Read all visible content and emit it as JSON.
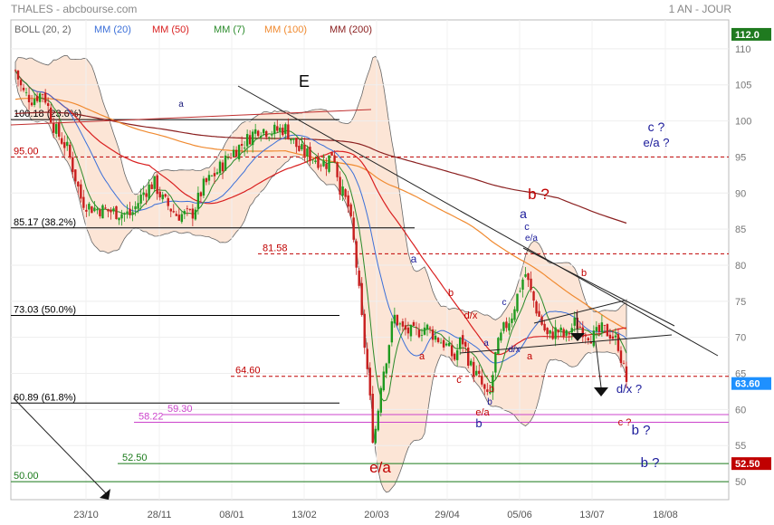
{
  "header": {
    "title": "THALES - abcbourse.com",
    "period": "1 AN - JOUR"
  },
  "chart_data": {
    "type": "candlestick",
    "legend": [
      {
        "label": "BOLL (20, 2)",
        "color": "#666666"
      },
      {
        "label": "MM (20)",
        "color": "#3b6fd8"
      },
      {
        "label": "MM (50)",
        "color": "#d92020"
      },
      {
        "label": "MM (7)",
        "color": "#2a8a2a"
      },
      {
        "label": "MM (100)",
        "color": "#f08a30"
      },
      {
        "label": "MM (200)",
        "color": "#8b2020"
      }
    ],
    "ylim": [
      47.5,
      114
    ],
    "y_ticks": [
      50,
      55,
      60,
      65,
      70,
      75,
      80,
      85,
      90,
      95,
      100,
      105,
      110
    ],
    "x_ticks": [
      "23/10",
      "28/11",
      "08/01",
      "13/02",
      "20/03",
      "29/04",
      "05/06",
      "13/07",
      "18/08"
    ],
    "price_badges": [
      {
        "value": "112.0",
        "price": 112.0,
        "color": "#1f7a1f"
      },
      {
        "value": "63.60",
        "price": 63.6,
        "color": "#1e90ff"
      },
      {
        "value": "52.50",
        "price": 52.5,
        "color": "#c00000"
      }
    ],
    "hlines": [
      {
        "label": "100.18  (23.6%)",
        "price": 100.18,
        "color": "#000000",
        "style": "solid",
        "x0": 12,
        "x1": 375
      },
      {
        "label": "95.00",
        "price": 95.0,
        "color": "#c00000",
        "style": "dashed",
        "x0": 12,
        "x1": 805
      },
      {
        "label": "85.17  (38.2%)",
        "price": 85.17,
        "color": "#000000",
        "style": "solid",
        "x0": 12,
        "x1": 458
      },
      {
        "label": "81.58",
        "price": 81.58,
        "color": "#c00000",
        "style": "dashed",
        "x0": 285,
        "x1": 805
      },
      {
        "label": "73.03  (50.0%)",
        "price": 73.03,
        "color": "#000000",
        "style": "solid",
        "x0": 12,
        "x1": 375
      },
      {
        "label": "64.60",
        "price": 64.6,
        "color": "#c00000",
        "style": "dashed",
        "x0": 255,
        "x1": 805
      },
      {
        "label": "60.89  (61.8%)",
        "price": 60.89,
        "color": "#000000",
        "style": "solid",
        "x0": 12,
        "x1": 375
      },
      {
        "label": "59.30",
        "price": 59.3,
        "color": "#cc44cc",
        "style": "solid",
        "x0": 180,
        "x1": 805
      },
      {
        "label": "58.22",
        "price": 58.22,
        "color": "#cc44cc",
        "style": "solid",
        "x0": 148,
        "x1": 805
      },
      {
        "label": "52.50",
        "price": 52.5,
        "color": "#1a7a1a",
        "style": "solid",
        "x0": 130,
        "x1": 805
      },
      {
        "label": "50.00",
        "price": 50.0,
        "color": "#1a7a1a",
        "style": "solid",
        "x0": 12,
        "x1": 805
      }
    ],
    "annotations": [
      {
        "text": "E",
        "x": 336,
        "y": 96,
        "color": "#000000",
        "size": 18
      },
      {
        "text": "a",
        "x": 200,
        "y": 118,
        "color": "#1a1a7a",
        "size": 10
      },
      {
        "text": "c ?",
        "x": 725,
        "y": 145,
        "color": "#1a1a9a",
        "size": 14
      },
      {
        "text": "e/a ?",
        "x": 725,
        "y": 162,
        "color": "#1a1a9a",
        "size": 13
      },
      {
        "text": "b ?",
        "x": 595,
        "y": 220,
        "color": "#c00000",
        "size": 17
      },
      {
        "text": "a",
        "x": 578,
        "y": 241,
        "color": "#1a1a9a",
        "size": 14
      },
      {
        "text": "c",
        "x": 582,
        "y": 254,
        "color": "#1a1a9a",
        "size": 11
      },
      {
        "text": "e/a",
        "x": 587,
        "y": 266,
        "color": "#1a1a9a",
        "size": 10
      },
      {
        "text": "a",
        "x": 457,
        "y": 290,
        "color": "#1a1a9a",
        "size": 12
      },
      {
        "text": "b",
        "x": 645,
        "y": 305,
        "color": "#c00000",
        "size": 11
      },
      {
        "text": "b",
        "x": 498,
        "y": 327,
        "color": "#c00000",
        "size": 11
      },
      {
        "text": "c",
        "x": 557,
        "y": 337,
        "color": "#1a1a9a",
        "size": 10
      },
      {
        "text": "d/x",
        "x": 520,
        "y": 352,
        "color": "#c00000",
        "size": 11
      },
      {
        "text": "a",
        "x": 537,
        "y": 382,
        "color": "#1a1a9a",
        "size": 10
      },
      {
        "text": "d/x",
        "x": 568,
        "y": 389,
        "color": "#1a1a9a",
        "size": 10
      },
      {
        "text": "a",
        "x": 466,
        "y": 397,
        "color": "#c00000",
        "size": 11
      },
      {
        "text": "a",
        "x": 585,
        "y": 397,
        "color": "#c00000",
        "size": 11
      },
      {
        "text": "c",
        "x": 507,
        "y": 423,
        "color": "#c00000",
        "size": 11
      },
      {
        "text": "b",
        "x": 543,
        "y": 433,
        "color": "#c00000",
        "size": 11
      },
      {
        "text": "d/x ?",
        "x": 695,
        "y": 434,
        "color": "#1a1a9a",
        "size": 13
      },
      {
        "text": "b",
        "x": 541,
        "y": 447,
        "color": "#1a1a9a",
        "size": 10
      },
      {
        "text": "e/a",
        "x": 533,
        "y": 459,
        "color": "#c00000",
        "size": 11
      },
      {
        "text": "b",
        "x": 529,
        "y": 472,
        "color": "#1a1a9a",
        "size": 13
      },
      {
        "text": "c ?",
        "x": 690,
        "y": 470,
        "color": "#c00000",
        "size": 11
      },
      {
        "text": "b ?",
        "x": 708,
        "y": 480,
        "color": "#1a1a9a",
        "size": 15
      },
      {
        "text": "b ?",
        "x": 718,
        "y": 516,
        "color": "#1a1a9a",
        "size": 15
      },
      {
        "text": "e/a",
        "x": 420,
        "y": 522,
        "color": "#c00000",
        "size": 17
      }
    ]
  }
}
